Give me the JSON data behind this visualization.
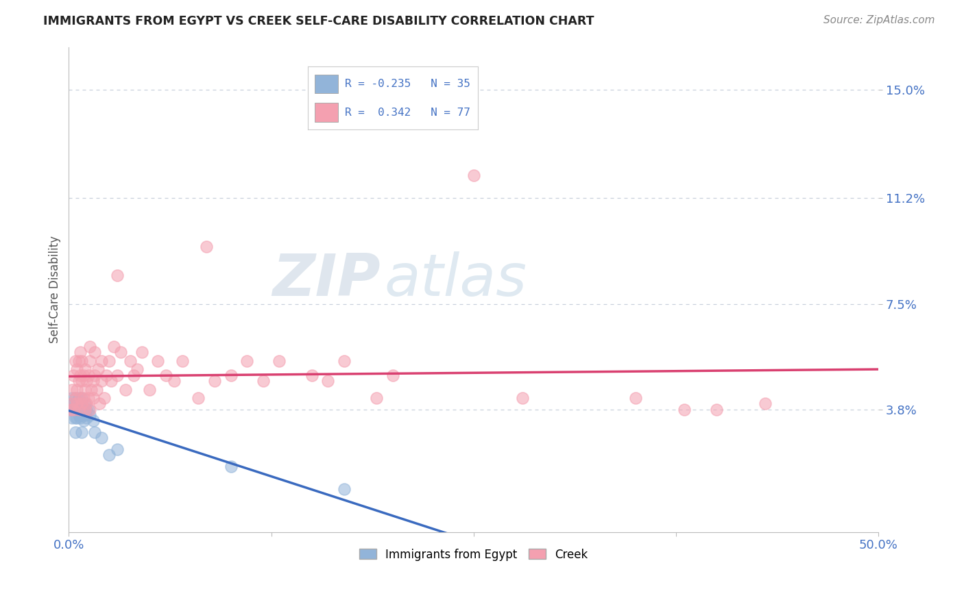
{
  "title": "IMMIGRANTS FROM EGYPT VS CREEK SELF-CARE DISABILITY CORRELATION CHART",
  "source": "Source: ZipAtlas.com",
  "ylabel": "Self-Care Disability",
  "xlim": [
    0.0,
    0.5
  ],
  "ylim": [
    -0.005,
    0.165
  ],
  "yticks": [
    0.038,
    0.075,
    0.112,
    0.15
  ],
  "ytick_labels": [
    "3.8%",
    "7.5%",
    "11.2%",
    "15.0%"
  ],
  "xticks": [
    0.0,
    0.125,
    0.25,
    0.375,
    0.5
  ],
  "xtick_labels": [
    "0.0%",
    "",
    "",
    "",
    "50.0%"
  ],
  "watermark_zip": "ZIP",
  "watermark_atlas": "atlas",
  "blue_color": "#92b4d9",
  "pink_color": "#f4a0b0",
  "blue_line_color": "#3a6abf",
  "pink_line_color": "#d94070",
  "grid_color": "#c8d0dc",
  "blue_scatter": [
    [
      0.001,
      0.038
    ],
    [
      0.002,
      0.042
    ],
    [
      0.002,
      0.035
    ],
    [
      0.003,
      0.04
    ],
    [
      0.003,
      0.038
    ],
    [
      0.004,
      0.042
    ],
    [
      0.004,
      0.035
    ],
    [
      0.004,
      0.03
    ],
    [
      0.005,
      0.038
    ],
    [
      0.005,
      0.04
    ],
    [
      0.005,
      0.035
    ],
    [
      0.006,
      0.042
    ],
    [
      0.006,
      0.038
    ],
    [
      0.006,
      0.036
    ],
    [
      0.007,
      0.04
    ],
    [
      0.007,
      0.035
    ],
    [
      0.007,
      0.038
    ],
    [
      0.008,
      0.042
    ],
    [
      0.008,
      0.036
    ],
    [
      0.008,
      0.03
    ],
    [
      0.009,
      0.038
    ],
    [
      0.009,
      0.034
    ],
    [
      0.01,
      0.04
    ],
    [
      0.01,
      0.036
    ],
    [
      0.011,
      0.038
    ],
    [
      0.011,
      0.035
    ],
    [
      0.012,
      0.038
    ],
    [
      0.013,
      0.036
    ],
    [
      0.015,
      0.034
    ],
    [
      0.016,
      0.03
    ],
    [
      0.02,
      0.028
    ],
    [
      0.025,
      0.022
    ],
    [
      0.03,
      0.024
    ],
    [
      0.1,
      0.018
    ],
    [
      0.17,
      0.01
    ]
  ],
  "pink_scatter": [
    [
      0.001,
      0.038
    ],
    [
      0.002,
      0.04
    ],
    [
      0.002,
      0.045
    ],
    [
      0.003,
      0.038
    ],
    [
      0.003,
      0.05
    ],
    [
      0.004,
      0.042
    ],
    [
      0.004,
      0.055
    ],
    [
      0.005,
      0.04
    ],
    [
      0.005,
      0.045
    ],
    [
      0.005,
      0.052
    ],
    [
      0.006,
      0.038
    ],
    [
      0.006,
      0.048
    ],
    [
      0.006,
      0.055
    ],
    [
      0.007,
      0.042
    ],
    [
      0.007,
      0.05
    ],
    [
      0.007,
      0.058
    ],
    [
      0.008,
      0.04
    ],
    [
      0.008,
      0.048
    ],
    [
      0.008,
      0.055
    ],
    [
      0.009,
      0.042
    ],
    [
      0.009,
      0.05
    ],
    [
      0.01,
      0.038
    ],
    [
      0.01,
      0.045
    ],
    [
      0.01,
      0.052
    ],
    [
      0.011,
      0.04
    ],
    [
      0.011,
      0.048
    ],
    [
      0.012,
      0.042
    ],
    [
      0.012,
      0.05
    ],
    [
      0.013,
      0.038
    ],
    [
      0.013,
      0.055
    ],
    [
      0.013,
      0.06
    ],
    [
      0.014,
      0.045
    ],
    [
      0.015,
      0.042
    ],
    [
      0.015,
      0.048
    ],
    [
      0.016,
      0.05
    ],
    [
      0.016,
      0.058
    ],
    [
      0.017,
      0.045
    ],
    [
      0.018,
      0.052
    ],
    [
      0.019,
      0.04
    ],
    [
      0.02,
      0.048
    ],
    [
      0.02,
      0.055
    ],
    [
      0.022,
      0.042
    ],
    [
      0.023,
      0.05
    ],
    [
      0.025,
      0.055
    ],
    [
      0.026,
      0.048
    ],
    [
      0.028,
      0.06
    ],
    [
      0.03,
      0.05
    ],
    [
      0.03,
      0.085
    ],
    [
      0.032,
      0.058
    ],
    [
      0.035,
      0.045
    ],
    [
      0.038,
      0.055
    ],
    [
      0.04,
      0.05
    ],
    [
      0.042,
      0.052
    ],
    [
      0.045,
      0.058
    ],
    [
      0.05,
      0.045
    ],
    [
      0.055,
      0.055
    ],
    [
      0.06,
      0.05
    ],
    [
      0.065,
      0.048
    ],
    [
      0.07,
      0.055
    ],
    [
      0.08,
      0.042
    ],
    [
      0.085,
      0.095
    ],
    [
      0.09,
      0.048
    ],
    [
      0.1,
      0.05
    ],
    [
      0.11,
      0.055
    ],
    [
      0.12,
      0.048
    ],
    [
      0.13,
      0.055
    ],
    [
      0.15,
      0.05
    ],
    [
      0.16,
      0.048
    ],
    [
      0.17,
      0.055
    ],
    [
      0.19,
      0.042
    ],
    [
      0.2,
      0.05
    ],
    [
      0.25,
      0.12
    ],
    [
      0.28,
      0.042
    ],
    [
      0.35,
      0.042
    ],
    [
      0.38,
      0.038
    ],
    [
      0.4,
      0.038
    ],
    [
      0.43,
      0.04
    ]
  ],
  "background_color": "#ffffff",
  "title_color": "#222222",
  "axis_label_color": "#555555",
  "tick_label_color": "#4472c4",
  "source_color": "#888888"
}
